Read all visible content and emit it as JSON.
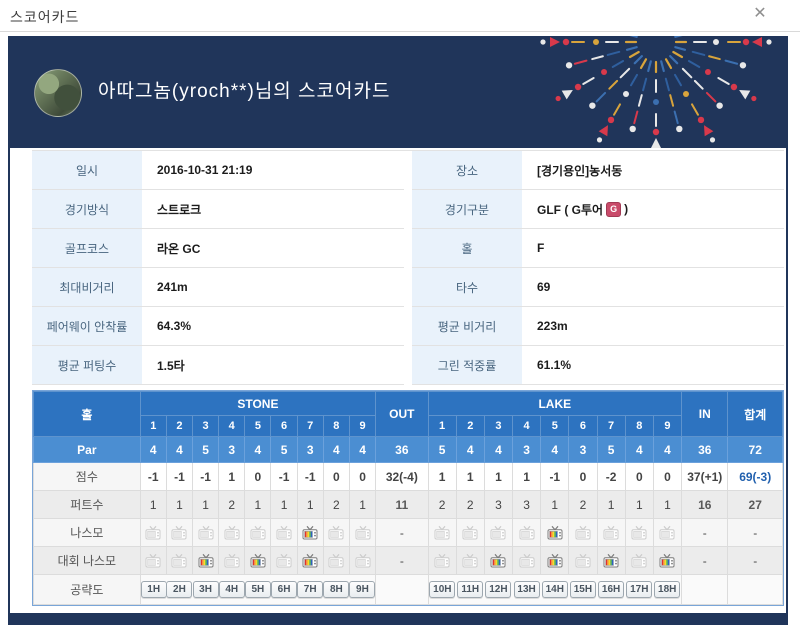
{
  "window": {
    "title": "스코어카드"
  },
  "header": {
    "title": "아따그놈(yroch**)님의 스코어카드"
  },
  "colors": {
    "navy": "#20355a",
    "table_header_blue": "#2d73c0",
    "par_row_blue": "#4b8ed2",
    "total_score_blue": "#2160ae",
    "gtour_badge_red": "#c94b6a",
    "firework_palette": [
      "#e8e8e8",
      "#d8394b",
      "#d8a43c",
      "#3b6fb0"
    ]
  },
  "info_rows": [
    {
      "left": {
        "label": "일시",
        "value": "2016-10-31 21:19"
      },
      "right": {
        "label": "장소",
        "value": "[경기용인]농서동"
      }
    },
    {
      "left": {
        "label": "경기방식",
        "value": "스트로크"
      },
      "right": {
        "label": "경기구분",
        "value": "GLF ( G투어",
        "badge": "G",
        "suffix": " )"
      }
    },
    {
      "left": {
        "label": "골프코스",
        "value": "라온 GC"
      },
      "right": {
        "label": "홀",
        "value": "F"
      }
    },
    {
      "left": {
        "label": "최대비거리",
        "value": "241m"
      },
      "right": {
        "label": "타수",
        "value": "69"
      }
    },
    {
      "left": {
        "label": "페어웨이 안착률",
        "value": "64.3%"
      },
      "right": {
        "label": "평균 비거리",
        "value": "223m"
      }
    },
    {
      "left": {
        "label": "평균 퍼팅수",
        "value": "1.5타"
      },
      "right": {
        "label": "그린 적중률",
        "value": "61.1%"
      }
    }
  ],
  "score_table": {
    "hole_header": "홀",
    "front_nine_name": "STONE",
    "back_nine_name": "LAKE",
    "out_label": "OUT",
    "in_label": "IN",
    "total_label": "합계",
    "hole_numbers": [
      "1",
      "2",
      "3",
      "4",
      "5",
      "6",
      "7",
      "8",
      "9"
    ],
    "rows": [
      {
        "key": "par",
        "label": "Par",
        "front": [
          "4",
          "4",
          "5",
          "3",
          "4",
          "5",
          "3",
          "4",
          "4"
        ],
        "out": "36",
        "back": [
          "5",
          "4",
          "4",
          "3",
          "4",
          "3",
          "5",
          "4",
          "4"
        ],
        "in": "36",
        "total": "72"
      },
      {
        "key": "score",
        "label": "점수",
        "front": [
          "-1",
          "-1",
          "-1",
          "1",
          "0",
          "-1",
          "-1",
          "0",
          "0"
        ],
        "out": "32(-4)",
        "back": [
          "1",
          "1",
          "1",
          "1",
          "-1",
          "0",
          "-2",
          "0",
          "0"
        ],
        "in": "37(+1)",
        "total": "69(-3)"
      },
      {
        "key": "putt",
        "label": "퍼트수",
        "front": [
          "1",
          "1",
          "1",
          "2",
          "1",
          "1",
          "1",
          "2",
          "1"
        ],
        "out": "11",
        "back": [
          "2",
          "2",
          "3",
          "3",
          "1",
          "2",
          "1",
          "1",
          "1"
        ],
        "in": "16",
        "total": "27"
      },
      {
        "key": "nasmo",
        "label": "나스모",
        "front": [
          0,
          0,
          0,
          0,
          0,
          0,
          1,
          0,
          0
        ],
        "out": "-",
        "back": [
          0,
          0,
          0,
          0,
          1,
          0,
          0,
          0,
          0
        ],
        "in": "-",
        "total": "-"
      },
      {
        "key": "event_nasmo",
        "label": "대회 나스모",
        "front": [
          0,
          0,
          1,
          0,
          1,
          0,
          1,
          0,
          0
        ],
        "out": "-",
        "back": [
          0,
          0,
          1,
          0,
          1,
          0,
          1,
          0,
          1
        ],
        "in": "-",
        "total": "-"
      },
      {
        "key": "strategy",
        "label": "공략도",
        "front": [
          "1H",
          "2H",
          "3H",
          "4H",
          "5H",
          "6H",
          "7H",
          "8H",
          "9H"
        ],
        "out": "",
        "back": [
          "10H",
          "11H",
          "12H",
          "13H",
          "14H",
          "15H",
          "16H",
          "17H",
          "18H"
        ],
        "in": "",
        "total": ""
      }
    ]
  }
}
